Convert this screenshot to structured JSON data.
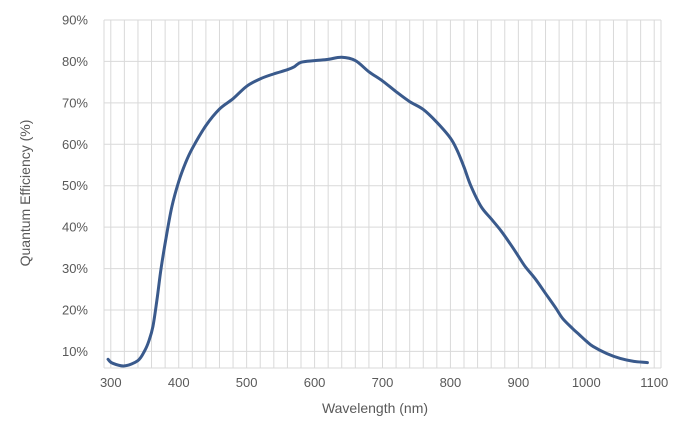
{
  "chart_data": {
    "type": "line",
    "title": "",
    "xlabel": "Wavelength (nm)",
    "ylabel": "Quantum Efficiency (%)",
    "xlim": [
      290,
      1110
    ],
    "ylim": [
      6,
      90
    ],
    "x_ticks": [
      300,
      400,
      500,
      600,
      700,
      800,
      900,
      1000,
      1100
    ],
    "x_tick_labels": [
      "300",
      "400",
      "500",
      "600",
      "700",
      "800",
      "900",
      "1000",
      "1100"
    ],
    "x_minor_step": 20,
    "y_ticks": [
      10,
      20,
      30,
      40,
      50,
      60,
      70,
      80,
      90
    ],
    "y_tick_labels": [
      "10%",
      "20%",
      "30%",
      "40%",
      "50%",
      "60%",
      "70%",
      "80%",
      "90%"
    ],
    "grid": true,
    "legend": "none",
    "colors": {
      "line": "#3a5a8c",
      "grid": "#d9d9d9",
      "text": "#595959"
    },
    "series": [
      {
        "name": "",
        "points": [
          [
            296,
            8.1
          ],
          [
            302,
            7.2
          ],
          [
            320,
            6.5
          ],
          [
            340,
            7.8
          ],
          [
            350,
            10.2
          ],
          [
            356,
            12.5
          ],
          [
            362,
            16
          ],
          [
            368,
            22.5
          ],
          [
            374,
            30
          ],
          [
            382,
            38
          ],
          [
            390,
            45
          ],
          [
            400,
            51
          ],
          [
            410,
            55.5
          ],
          [
            420,
            59
          ],
          [
            440,
            64.5
          ],
          [
            460,
            68.5
          ],
          [
            480,
            71
          ],
          [
            500,
            74
          ],
          [
            520,
            75.8
          ],
          [
            540,
            77
          ],
          [
            560,
            78
          ],
          [
            570,
            78.7
          ],
          [
            580,
            79.8
          ],
          [
            600,
            80.2
          ],
          [
            620,
            80.5
          ],
          [
            640,
            81
          ],
          [
            660,
            80.2
          ],
          [
            680,
            77.5
          ],
          [
            700,
            75.3
          ],
          [
            720,
            72.7
          ],
          [
            740,
            70.3
          ],
          [
            760,
            68.4
          ],
          [
            780,
            65.3
          ],
          [
            800,
            61.5
          ],
          [
            810,
            58.5
          ],
          [
            820,
            54.5
          ],
          [
            830,
            50
          ],
          [
            845,
            45
          ],
          [
            860,
            42
          ],
          [
            875,
            39
          ],
          [
            890,
            35.5
          ],
          [
            900,
            33
          ],
          [
            910,
            30.5
          ],
          [
            925,
            27.5
          ],
          [
            940,
            24
          ],
          [
            955,
            20.5
          ],
          [
            965,
            18
          ],
          [
            980,
            15.5
          ],
          [
            990,
            14
          ],
          [
            1000,
            12.5
          ],
          [
            1010,
            11.2
          ],
          [
            1030,
            9.5
          ],
          [
            1050,
            8.3
          ],
          [
            1070,
            7.6
          ],
          [
            1090,
            7.3
          ]
        ]
      }
    ]
  }
}
